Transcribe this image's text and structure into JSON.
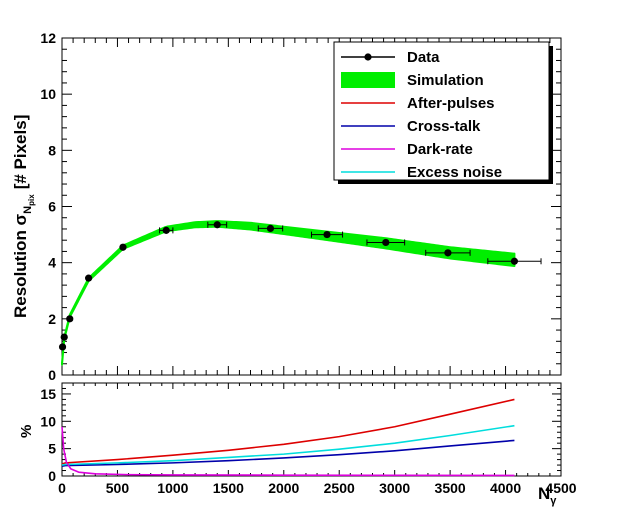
{
  "chart_data": [
    {
      "type": "line",
      "panel": "top",
      "ylabel_main": "Resolution σ",
      "ylabel_sub": "N",
      "ylabel_subsub": "pix",
      "ylabel_unit": "[# Pixels]",
      "xlim": [
        0,
        4500
      ],
      "ylim": [
        0,
        12
      ],
      "yticks": [
        "0",
        "2",
        "4",
        "6",
        "8",
        "10",
        "12"
      ],
      "legend_position": "top-right",
      "legend": [
        {
          "label": "Data",
          "color": "#000000",
          "kind": "marker"
        },
        {
          "label": "Simulation",
          "color": "#00ee00",
          "kind": "fill"
        },
        {
          "label": "After-pulses",
          "color": "#dd0000",
          "kind": "line"
        },
        {
          "label": "Cross-talk",
          "color": "#0000aa",
          "kind": "line"
        },
        {
          "label": "Dark-rate",
          "color": "#dd00dd",
          "kind": "line"
        },
        {
          "label": "Excess noise",
          "color": "#00dddd",
          "kind": "line"
        }
      ],
      "data_points": [
        {
          "x": 5,
          "y": 1.0,
          "xerr": 0
        },
        {
          "x": 20,
          "y": 1.35,
          "xerr": 0
        },
        {
          "x": 70,
          "y": 2.0,
          "xerr": 0
        },
        {
          "x": 240,
          "y": 3.45,
          "xerr": 0
        },
        {
          "x": 550,
          "y": 4.55,
          "xerr": 0
        },
        {
          "x": 940,
          "y": 5.15,
          "xerr": 60
        },
        {
          "x": 1400,
          "y": 5.35,
          "xerr": 85
        },
        {
          "x": 1880,
          "y": 5.22,
          "xerr": 110
        },
        {
          "x": 2390,
          "y": 5.0,
          "xerr": 140
        },
        {
          "x": 2920,
          "y": 4.72,
          "xerr": 170
        },
        {
          "x": 3480,
          "y": 4.35,
          "xerr": 200
        },
        {
          "x": 4080,
          "y": 4.05,
          "xerr": 240
        }
      ],
      "simulation_band": {
        "x": [
          0,
          20,
          70,
          240,
          550,
          940,
          1200,
          1400,
          1700,
          2000,
          2400,
          2900,
          3500,
          4080
        ],
        "center": [
          0.4,
          1.3,
          2.1,
          3.4,
          4.55,
          5.2,
          5.35,
          5.38,
          5.3,
          5.15,
          4.95,
          4.7,
          4.35,
          4.1
        ],
        "half_width": [
          0.03,
          0.03,
          0.04,
          0.05,
          0.06,
          0.08,
          0.09,
          0.1,
          0.12,
          0.13,
          0.15,
          0.18,
          0.2,
          0.22
        ]
      }
    },
    {
      "type": "line",
      "panel": "bottom",
      "ylabel": "%",
      "xlabel_main": "N",
      "xlabel_sub": "γ",
      "xlim": [
        0,
        4500
      ],
      "ylim": [
        0,
        17
      ],
      "xticks": [
        "0",
        "500",
        "1000",
        "1500",
        "2000",
        "2500",
        "3000",
        "3500",
        "4000",
        "4500"
      ],
      "yticks": [
        "0",
        "5",
        "10",
        "15"
      ],
      "series": [
        {
          "name": "After-pulses",
          "color": "#dd0000",
          "x": [
            0,
            30,
            500,
            1000,
            1500,
            2000,
            2500,
            3000,
            3500,
            4080
          ],
          "y": [
            2.2,
            2.4,
            3.0,
            3.8,
            4.7,
            5.8,
            7.2,
            9.0,
            11.3,
            14.0
          ]
        },
        {
          "name": "Cross-talk",
          "color": "#0000aa",
          "x": [
            0,
            30,
            500,
            1000,
            1500,
            2000,
            2500,
            3000,
            3500,
            4080
          ],
          "y": [
            1.8,
            1.9,
            2.1,
            2.4,
            2.8,
            3.3,
            3.9,
            4.6,
            5.5,
            6.5
          ]
        },
        {
          "name": "Excess noise",
          "color": "#00dddd",
          "x": [
            0,
            30,
            500,
            1000,
            1500,
            2000,
            2500,
            3000,
            3500,
            4080
          ],
          "y": [
            2.0,
            2.1,
            2.4,
            2.8,
            3.4,
            4.0,
            4.9,
            6.0,
            7.4,
            9.2
          ]
        },
        {
          "name": "Dark-rate",
          "color": "#dd00dd",
          "x": [
            0,
            15,
            40,
            80,
            150,
            300,
            600,
            1000,
            2000,
            3000,
            4080
          ],
          "y": [
            9.0,
            5.0,
            2.5,
            1.3,
            0.7,
            0.4,
            0.25,
            0.2,
            0.15,
            0.12,
            0.1
          ]
        }
      ]
    }
  ]
}
